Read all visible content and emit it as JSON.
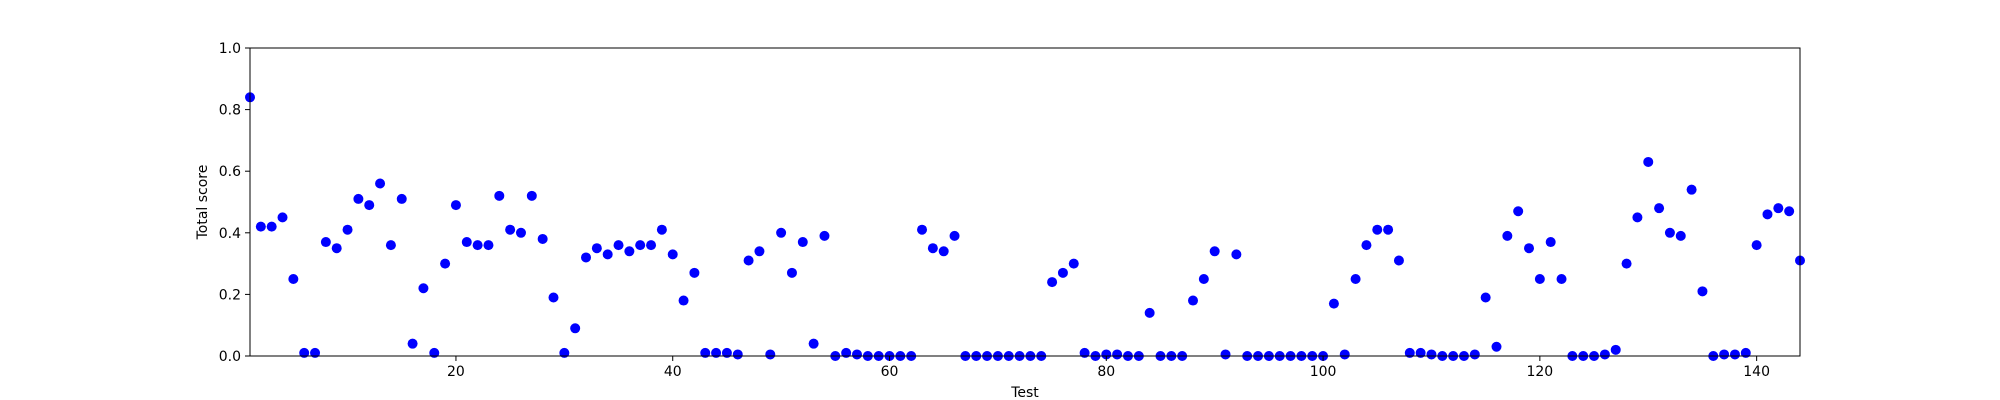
{
  "chart_data": {
    "type": "scatter",
    "title": "",
    "xlabel": "Test",
    "ylabel": "Total score",
    "xlim": [
      1,
      144
    ],
    "ylim": [
      0.0,
      1.0
    ],
    "xticks": [
      20,
      40,
      60,
      80,
      100,
      120,
      140
    ],
    "yticks": [
      "0.0",
      "0.2",
      "0.4",
      "0.6",
      "0.8",
      "1.0"
    ],
    "grid": false,
    "legend": "none",
    "marker_color": "#0000ff",
    "series": [
      {
        "x": [
          1,
          2,
          3,
          4,
          5,
          6,
          7,
          8,
          9,
          10,
          11,
          12,
          13,
          14,
          15,
          16,
          17,
          18,
          19,
          20,
          21,
          22,
          23,
          24,
          25,
          26,
          27,
          28,
          29,
          30,
          31,
          32,
          33,
          34,
          35,
          36,
          37,
          38,
          39,
          40,
          41,
          42,
          43,
          44,
          45,
          46,
          47,
          48,
          49,
          50,
          51,
          52,
          53,
          54,
          55,
          56,
          57,
          58,
          59,
          60,
          61,
          62,
          63,
          64,
          65,
          66,
          67,
          68,
          69,
          70,
          71,
          72,
          73,
          74,
          75,
          76,
          77,
          78,
          79,
          80,
          81,
          82,
          83,
          84,
          85,
          86,
          87,
          88,
          89,
          90,
          91,
          92,
          93,
          94,
          95,
          96,
          97,
          98,
          99,
          100,
          101,
          102,
          103,
          104,
          105,
          106,
          107,
          108,
          109,
          110,
          111,
          112,
          113,
          114,
          115,
          116,
          117,
          118,
          119,
          120,
          121,
          122,
          123,
          124,
          125,
          126,
          127,
          128,
          129,
          130,
          131,
          132,
          133,
          134,
          135,
          136,
          137,
          138,
          139,
          140,
          141,
          142,
          143,
          144
        ],
        "y": [
          0.84,
          0.42,
          0.42,
          0.45,
          0.25,
          0.01,
          0.01,
          0.37,
          0.35,
          0.41,
          0.51,
          0.49,
          0.56,
          0.36,
          0.51,
          0.04,
          0.22,
          0.01,
          0.3,
          0.49,
          0.37,
          0.36,
          0.36,
          0.52,
          0.41,
          0.4,
          0.52,
          0.38,
          0.19,
          0.01,
          0.09,
          0.32,
          0.35,
          0.33,
          0.36,
          0.34,
          0.36,
          0.36,
          0.41,
          0.33,
          0.18,
          0.27,
          0.01,
          0.01,
          0.01,
          0.005,
          0.31,
          0.34,
          0.005,
          0.4,
          0.27,
          0.37,
          0.04,
          0.39,
          0.0,
          0.01,
          0.005,
          0.0,
          0.0,
          0.0,
          0.0,
          0.0,
          0.41,
          0.35,
          0.34,
          0.39,
          0.0,
          0.0,
          0.0,
          0.0,
          0.0,
          0.0,
          0.0,
          0.0,
          0.24,
          0.27,
          0.3,
          0.01,
          0.0,
          0.005,
          0.005,
          0.0,
          0.0,
          0.14,
          0.0,
          0.0,
          0.0,
          0.18,
          0.25,
          0.34,
          0.005,
          0.33,
          0.0,
          0.0,
          0.0,
          0.0,
          0.0,
          0.0,
          0.0,
          0.0,
          0.17,
          0.005,
          0.25,
          0.36,
          0.41,
          0.41,
          0.31,
          0.01,
          0.01,
          0.005,
          0.0,
          0.0,
          0.0,
          0.005,
          0.19,
          0.03,
          0.39,
          0.47,
          0.35,
          0.25,
          0.37,
          0.25,
          0.0,
          0.0,
          0.0,
          0.005,
          0.02,
          0.3,
          0.45,
          0.63,
          0.48,
          0.4,
          0.39,
          0.54,
          0.21,
          0.0,
          0.005,
          0.005,
          0.01,
          0.36,
          0.46,
          0.48,
          0.47,
          0.31
        ]
      }
    ]
  }
}
